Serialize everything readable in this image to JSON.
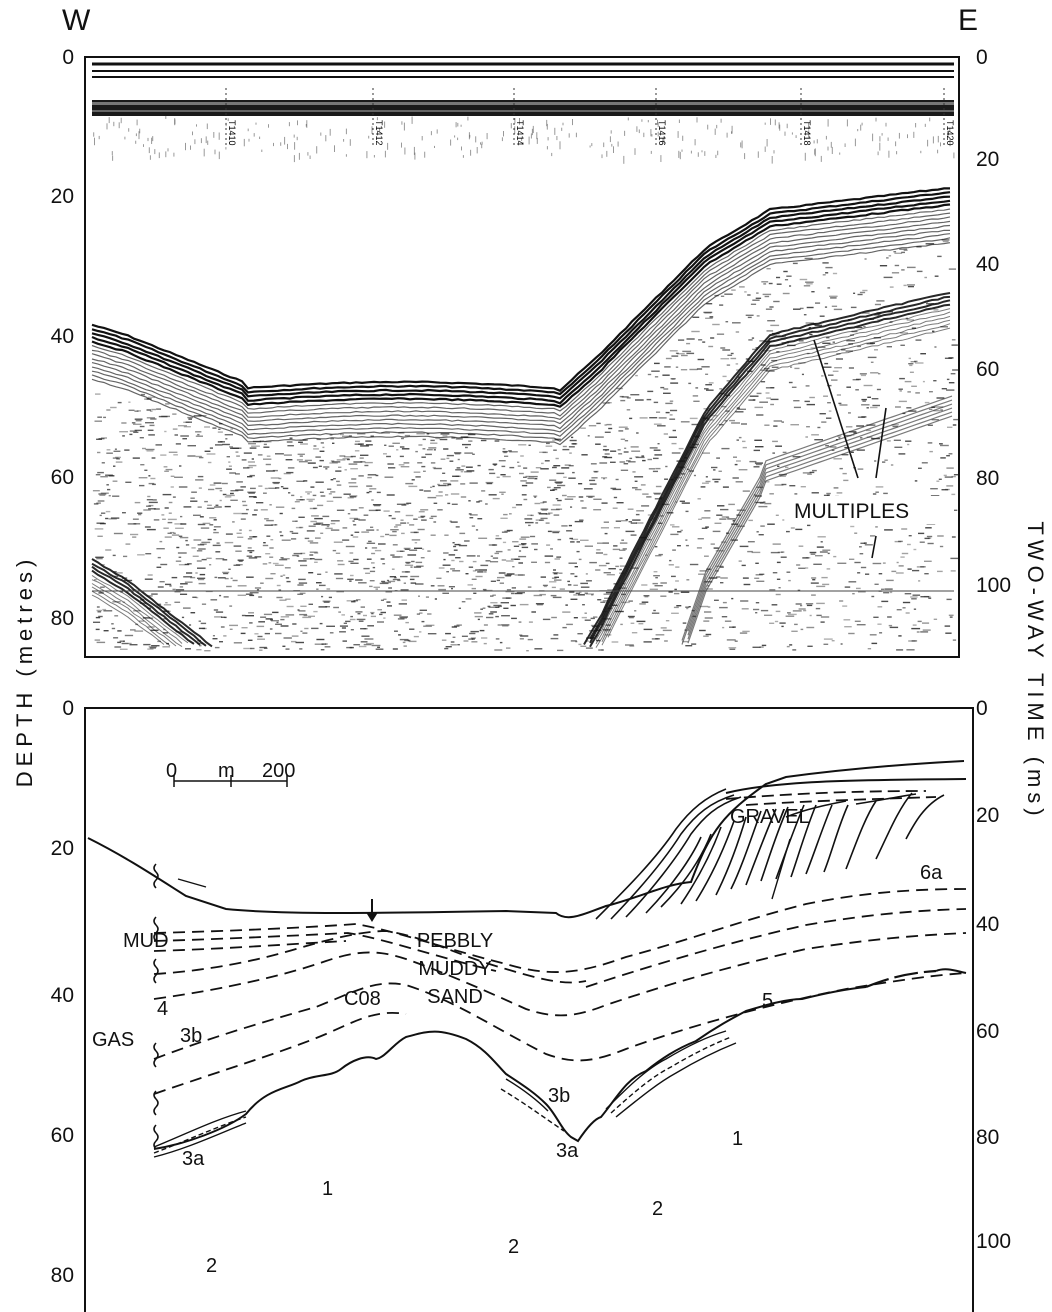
{
  "directions": {
    "west": "W",
    "east": "E"
  },
  "axes": {
    "left_title": "DEPTH (metres)",
    "right_title": "TWO-WAY TIME (ms)",
    "depth_ticks": [
      "0",
      "20",
      "40",
      "60",
      "80"
    ],
    "time_ticks": [
      "0",
      "20",
      "40",
      "60",
      "80",
      "100"
    ]
  },
  "seismic_profile": {
    "fix_marks": [
      "T1410",
      "T1412",
      "T1414",
      "T1416",
      "T1418",
      "T1420"
    ],
    "annotation": "MULTIPLES"
  },
  "interpretation": {
    "scale_bar": {
      "start": "0",
      "unit": "m",
      "end": "200"
    },
    "sediment_labels": {
      "gravel": "GRAVEL",
      "mud": "MUD",
      "pebbly": "PEBBLY",
      "muddy": "MUDDY",
      "sand": "SAND",
      "gas": "GAS",
      "core": "C08"
    },
    "unit_labels": {
      "u6a": "6a",
      "u5": "5",
      "u4": "4",
      "u3b_left": "3b",
      "u3b_center": "3b",
      "u3a_left": "3a",
      "u3a_center": "3a",
      "u2_left": "2",
      "u2_center": "2",
      "u2_right": "2",
      "u1_left": "1",
      "u1_right": "1"
    }
  }
}
